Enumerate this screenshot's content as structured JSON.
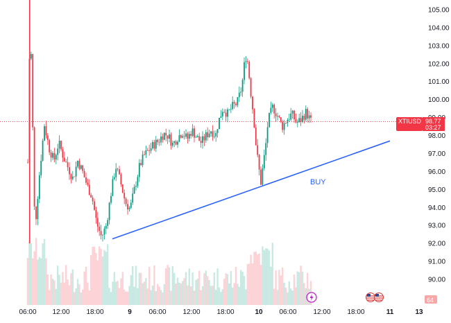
{
  "chart_data": {
    "type": "candlestick",
    "symbol": "XTIUSD",
    "last_price": "98.77",
    "countdown": "03:27",
    "volume_badge": "64",
    "annotation": "BUY",
    "ylim": [
      89.2,
      105.6
    ],
    "y_ticks": [
      "105.00",
      "104.00",
      "103.00",
      "102.00",
      "101.00",
      "100.00",
      "99.00",
      "98.00",
      "97.00",
      "96.00",
      "95.00",
      "94.00",
      "93.00",
      "92.00",
      "91.00",
      "90.00"
    ],
    "x_ticks": [
      {
        "label": "06:00",
        "bold": false
      },
      {
        "label": "12:00",
        "bold": false
      },
      {
        "label": "18:00",
        "bold": false
      },
      {
        "label": "9",
        "bold": true
      },
      {
        "label": "06:00",
        "bold": false
      },
      {
        "label": "12:00",
        "bold": false
      },
      {
        "label": "18:00",
        "bold": false
      },
      {
        "label": "10",
        "bold": true
      },
      {
        "label": "06:00",
        "bold": false
      },
      {
        "label": "12:00",
        "bold": false
      },
      {
        "label": "18:00",
        "bold": false
      },
      {
        "label": "11",
        "bold": true
      },
      {
        "label": "13",
        "bold": true
      }
    ],
    "trendline": {
      "start": 92.25,
      "end": 97.7
    },
    "price_path": [
      [
        0,
        96.5
      ],
      [
        1,
        104.8
      ],
      [
        2,
        99.0
      ],
      [
        3,
        92.7
      ],
      [
        5,
        96.0
      ],
      [
        7,
        98.6
      ],
      [
        9,
        97.3
      ],
      [
        11,
        96.6
      ],
      [
        13,
        97.6
      ],
      [
        15,
        96.8
      ],
      [
        17,
        96.2
      ],
      [
        19,
        95.6
      ],
      [
        21,
        96.6
      ],
      [
        23,
        96.0
      ],
      [
        25,
        95.2
      ],
      [
        27,
        94.6
      ],
      [
        29,
        93.1
      ],
      [
        31,
        92.35
      ],
      [
        33,
        93.0
      ],
      [
        35,
        94.8
      ],
      [
        37,
        96.3
      ],
      [
        39,
        95.4
      ],
      [
        41,
        94.3
      ],
      [
        43,
        93.9
      ],
      [
        45,
        95.1
      ],
      [
        47,
        96.3
      ],
      [
        49,
        96.9
      ],
      [
        51,
        97.2
      ],
      [
        53,
        97.5
      ],
      [
        55,
        97.7
      ],
      [
        57,
        98.1
      ],
      [
        59,
        98.0
      ],
      [
        61,
        97.5
      ],
      [
        63,
        97.9
      ],
      [
        65,
        98.2
      ],
      [
        67,
        97.8
      ],
      [
        69,
        98.3
      ],
      [
        71,
        97.9
      ],
      [
        73,
        97.6
      ],
      [
        75,
        98.0
      ],
      [
        77,
        98.3
      ],
      [
        79,
        98.0
      ],
      [
        80,
        98.7
      ],
      [
        82,
        99.5
      ],
      [
        84,
        99.2
      ],
      [
        86,
        99.6
      ],
      [
        88,
        99.8
      ],
      [
        90,
        100.7
      ],
      [
        91,
        101.9
      ],
      [
        92,
        102.6
      ],
      [
        93,
        101.4
      ],
      [
        94,
        100.1
      ],
      [
        95,
        99.0
      ],
      [
        96,
        97.4
      ],
      [
        97,
        96.3
      ],
      [
        98,
        95.4
      ],
      [
        100,
        97.4
      ],
      [
        101,
        98.8
      ],
      [
        103,
        99.6
      ],
      [
        105,
        99.1
      ],
      [
        107,
        98.5
      ],
      [
        109,
        98.9
      ],
      [
        111,
        99.2
      ],
      [
        113,
        98.7
      ],
      [
        115,
        98.9
      ],
      [
        117,
        99.3
      ],
      [
        119,
        98.8
      ]
    ]
  }
}
